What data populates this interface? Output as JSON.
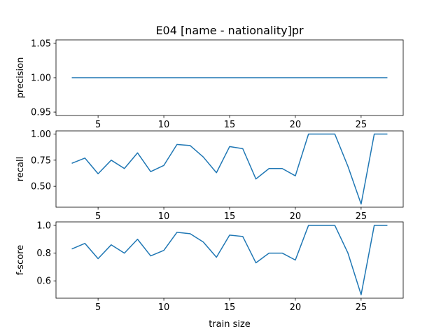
{
  "title": "E04 [name - nationality]pr",
  "colors": {
    "line": "#1f77b4",
    "axes": "#000000",
    "background": "#ffffff"
  },
  "chart_data": [
    {
      "type": "line",
      "ylabel": "precision",
      "xlabel": "",
      "xlim": [
        1.8,
        28.2
      ],
      "ylim": [
        0.945,
        1.055
      ],
      "xticks": [
        5,
        10,
        15,
        20,
        25
      ],
      "xtick_labels": [
        "5",
        "10",
        "15",
        "20",
        "25"
      ],
      "yticks": [
        0.95,
        1.0,
        1.05
      ],
      "ytick_labels": [
        "0.95",
        "1.00",
        "1.05"
      ],
      "grid": false,
      "x": [
        3,
        4,
        5,
        6,
        7,
        8,
        9,
        10,
        11,
        12,
        13,
        14,
        15,
        16,
        17,
        18,
        19,
        20,
        21,
        22,
        23,
        24,
        25,
        26,
        27
      ],
      "values": [
        1.0,
        1.0,
        1.0,
        1.0,
        1.0,
        1.0,
        1.0,
        1.0,
        1.0,
        1.0,
        1.0,
        1.0,
        1.0,
        1.0,
        1.0,
        1.0,
        1.0,
        1.0,
        1.0,
        1.0,
        1.0,
        1.0,
        1.0,
        1.0,
        1.0
      ]
    },
    {
      "type": "line",
      "ylabel": "recall",
      "xlabel": "",
      "xlim": [
        1.8,
        28.2
      ],
      "ylim": [
        0.3,
        1.03
      ],
      "xticks": [
        5,
        10,
        15,
        20,
        25
      ],
      "xtick_labels": [
        "5",
        "10",
        "15",
        "20",
        "25"
      ],
      "yticks": [
        0.5,
        0.75,
        1.0
      ],
      "ytick_labels": [
        "0.50",
        "0.75",
        "1.00"
      ],
      "grid": false,
      "x": [
        3,
        4,
        5,
        6,
        7,
        8,
        9,
        10,
        11,
        12,
        13,
        14,
        15,
        16,
        17,
        18,
        19,
        20,
        21,
        22,
        23,
        24,
        25,
        26,
        27
      ],
      "values": [
        0.72,
        0.77,
        0.62,
        0.75,
        0.67,
        0.82,
        0.64,
        0.7,
        0.9,
        0.89,
        0.78,
        0.63,
        0.88,
        0.86,
        0.57,
        0.67,
        0.67,
        0.6,
        1.0,
        1.0,
        1.0,
        0.69,
        0.33,
        1.0,
        1.0
      ]
    },
    {
      "type": "line",
      "ylabel": "f-score",
      "xlabel": "train size",
      "xlim": [
        1.8,
        28.2
      ],
      "ylim": [
        0.475,
        1.025
      ],
      "xticks": [
        5,
        10,
        15,
        20,
        25
      ],
      "xtick_labels": [
        "5",
        "10",
        "15",
        "20",
        "25"
      ],
      "yticks": [
        0.6,
        0.8,
        1.0
      ],
      "ytick_labels": [
        "0.6",
        "0.8",
        "1.0"
      ],
      "grid": false,
      "x": [
        3,
        4,
        5,
        6,
        7,
        8,
        9,
        10,
        11,
        12,
        13,
        14,
        15,
        16,
        17,
        18,
        19,
        20,
        21,
        22,
        23,
        24,
        25,
        26,
        27
      ],
      "values": [
        0.83,
        0.87,
        0.76,
        0.86,
        0.8,
        0.9,
        0.78,
        0.82,
        0.95,
        0.94,
        0.88,
        0.77,
        0.93,
        0.92,
        0.73,
        0.8,
        0.8,
        0.75,
        1.0,
        1.0,
        1.0,
        0.8,
        0.5,
        1.0,
        1.0
      ]
    }
  ]
}
